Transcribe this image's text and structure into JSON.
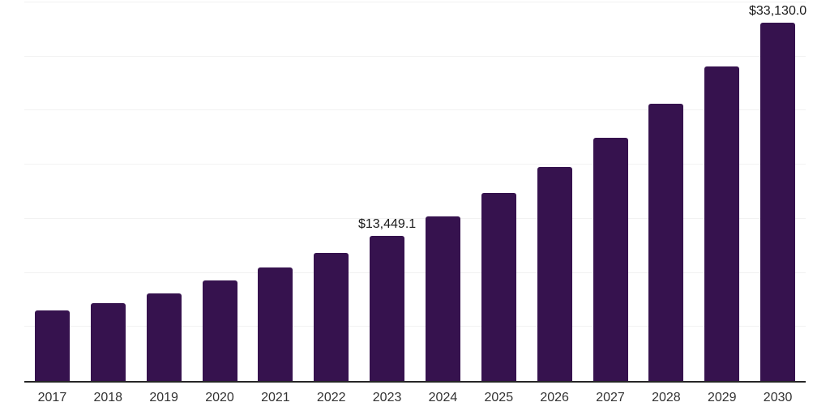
{
  "chart_data": {
    "type": "bar",
    "categories": [
      "2017",
      "2018",
      "2019",
      "2020",
      "2021",
      "2022",
      "2023",
      "2024",
      "2025",
      "2026",
      "2027",
      "2028",
      "2029",
      "2030"
    ],
    "values": [
      6500,
      7180,
      8070,
      9270,
      10460,
      11810,
      13449.1,
      15240,
      17410,
      19800,
      22490,
      25630,
      29070,
      33130.0
    ],
    "data_labels": [
      null,
      null,
      null,
      null,
      null,
      null,
      "$13,449.1",
      null,
      null,
      null,
      null,
      null,
      null,
      "$33,130.0"
    ],
    "ylim": [
      0,
      35000
    ],
    "gridline_step": 5000,
    "grid": "horizontal",
    "legend": "none",
    "colors": {
      "bar": "#36124E",
      "axis_line": "#262626",
      "gridline": "#f2f2f2",
      "data_label": "#1a1a1a",
      "tick_label": "#333333",
      "background": "#ffffff"
    }
  }
}
